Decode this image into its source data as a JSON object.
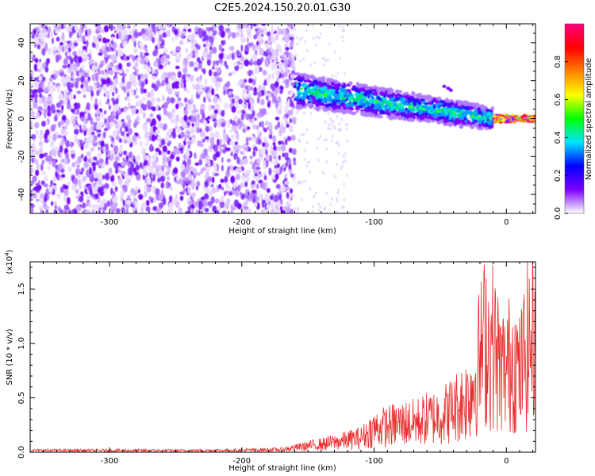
{
  "title": "C2E5.2024.150.20.01.G30",
  "chart_data": [
    {
      "type": "heatmap",
      "title": "C2E5.2024.150.20.01.G30",
      "xlabel": "Height of straight line (km)",
      "ylabel": "Frequency (Hz)",
      "xlim": [
        -360,
        22
      ],
      "ylim": [
        -50,
        50
      ],
      "x_ticks": [
        -300,
        -200,
        -100,
        0
      ],
      "y_ticks": [
        -40,
        -20,
        0,
        20,
        40
      ],
      "colorbar": {
        "label": "Normalized spectral amplitude",
        "range": [
          0,
          1
        ],
        "ticks": [
          "0.0",
          "0.2",
          "0.4",
          "0.6",
          "0.8"
        ],
        "colors": [
          "#ffffff",
          "#7d00ff",
          "#0000ff",
          "#00e5ff",
          "#00ff00",
          "#ffff00",
          "#ff8000",
          "#ff0000",
          "#ff0080"
        ]
      },
      "regions": [
        {
          "description_x_range": [
            -360,
            -160
          ],
          "frequency_range": [
            -50,
            50
          ],
          "level": 0.1
        },
        {
          "description_x_range": [
            -160,
            -10
          ],
          "frequency_center_start": 15,
          "frequency_center_end": 0,
          "level": 0.35
        },
        {
          "description_x_range": [
            -10,
            22
          ],
          "frequency_center": 0,
          "level": 0.85
        }
      ]
    },
    {
      "type": "line",
      "xlabel": "Height of straight line (km)",
      "ylabel": "SNR (10 * v/v)",
      "multiplier_label": "(x10",
      "multiplier_exp": "4",
      "multiplier_close": ")",
      "xlim": [
        -360,
        22
      ],
      "ylim": [
        0,
        17500
      ],
      "x_ticks": [
        -300,
        -200,
        -100,
        0
      ],
      "y_ticks": [
        0,
        5000,
        10000,
        15000
      ],
      "y_tick_labels": [
        "0.0",
        "0.5",
        "1.0",
        "1.5"
      ],
      "line_color": "#e8302f",
      "series": [
        {
          "x": [
            -360,
            -300,
            -250,
            -200,
            -170,
            -150,
            -130,
            -110,
            -100,
            -90,
            -80,
            -70,
            -60,
            -50,
            -40,
            -30,
            -25,
            -20,
            -15,
            -12,
            -10,
            -8,
            -5,
            0,
            5,
            10,
            15,
            20
          ],
          "values": [
            200,
            200,
            180,
            220,
            300,
            700,
            1100,
            1600,
            2600,
            2900,
            3200,
            3300,
            3700,
            4100,
            4800,
            6000,
            7500,
            10500,
            13000,
            11500,
            12000,
            11000,
            9500,
            9000,
            11000,
            8500,
            11500,
            12500
          ]
        }
      ]
    }
  ]
}
